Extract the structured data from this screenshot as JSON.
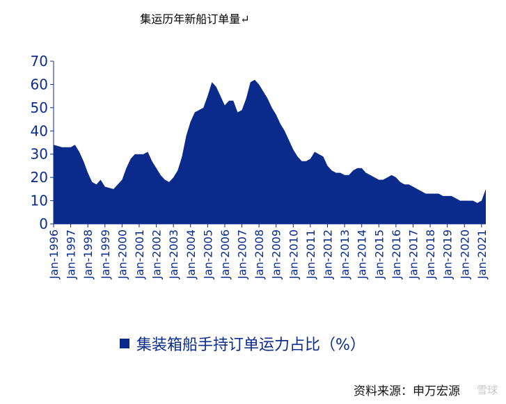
{
  "title": "集运历年新船订单量↵",
  "legend_label": "集装箱船手持订单运力占比（%）",
  "source": "资料来源：申万宏源",
  "watermark": "雪球",
  "colors": {
    "area": "#0a2a8c",
    "axis": "#0b2c8a",
    "text": "#0b2c8a"
  },
  "chart_data": {
    "type": "area",
    "title": "集运历年新船订单量",
    "series": [
      {
        "name": "集装箱船手持订单运力占比（%）"
      }
    ],
    "ylim": [
      0,
      70
    ],
    "yticks": [
      0,
      10,
      20,
      30,
      40,
      50,
      60,
      70
    ],
    "xlim": [
      1996.0,
      2021.25
    ],
    "xtick_labels": [
      "Jan-1996",
      "Jan-1997",
      "Jan-1998",
      "Jan-1999",
      "Jan-2000",
      "Jan-2001",
      "Jan-2002",
      "Jan-2003",
      "Jan-2004",
      "Jan-2005",
      "Jan-2006",
      "Jan-2007",
      "Jan-2008",
      "Jan-2009",
      "Jan-2010",
      "Jan-2011",
      "Jan-2012",
      "Jan-2013",
      "Jan-2014",
      "Jan-2015",
      "Jan-2016",
      "Jan-2017",
      "Jan-2018",
      "Jan-2019",
      "Jan-2020",
      "Jan-2021"
    ],
    "grid": false,
    "legend_position": "bottom",
    "points": [
      [
        "Jan-1996",
        34
      ],
      [
        "Jul-1996",
        33
      ],
      [
        "Jan-1997",
        33
      ],
      [
        "Apr-1997",
        34
      ],
      [
        "Jul-1997",
        31
      ],
      [
        "Oct-1997",
        27
      ],
      [
        "Jan-1998",
        22
      ],
      [
        "Apr-1998",
        18
      ],
      [
        "Jul-1998",
        17
      ],
      [
        "Oct-1998",
        19
      ],
      [
        "Jan-1999",
        16
      ],
      [
        "Jul-1999",
        15
      ],
      [
        "Oct-1999",
        17
      ],
      [
        "Jan-2000",
        19
      ],
      [
        "Apr-2000",
        24
      ],
      [
        "Jul-2000",
        28
      ],
      [
        "Oct-2000",
        30
      ],
      [
        "Jan-2001",
        30
      ],
      [
        "Apr-2001",
        30
      ],
      [
        "Jul-2001",
        31
      ],
      [
        "Oct-2001",
        27
      ],
      [
        "Jan-2002",
        24
      ],
      [
        "Apr-2002",
        21
      ],
      [
        "Jul-2002",
        19
      ],
      [
        "Oct-2002",
        18
      ],
      [
        "Jan-2003",
        20
      ],
      [
        "Apr-2003",
        23
      ],
      [
        "Jul-2003",
        29
      ],
      [
        "Oct-2003",
        38
      ],
      [
        "Jan-2004",
        44
      ],
      [
        "Apr-2004",
        48
      ],
      [
        "Jul-2004",
        49
      ],
      [
        "Oct-2004",
        50
      ],
      [
        "Jan-2005",
        55
      ],
      [
        "Apr-2005",
        61
      ],
      [
        "Jul-2005",
        59
      ],
      [
        "Oct-2005",
        55
      ],
      [
        "Jan-2006",
        51
      ],
      [
        "Apr-2006",
        53
      ],
      [
        "Jul-2006",
        53
      ],
      [
        "Oct-2006",
        48
      ],
      [
        "Jan-2007",
        49
      ],
      [
        "Apr-2007",
        54
      ],
      [
        "Jul-2007",
        61
      ],
      [
        "Oct-2007",
        62
      ],
      [
        "Jan-2008",
        60
      ],
      [
        "Apr-2008",
        57
      ],
      [
        "Jul-2008",
        54
      ],
      [
        "Oct-2008",
        50
      ],
      [
        "Jan-2009",
        47
      ],
      [
        "Apr-2009",
        43
      ],
      [
        "Jul-2009",
        40
      ],
      [
        "Oct-2009",
        36
      ],
      [
        "Jan-2010",
        32
      ],
      [
        "Apr-2010",
        29
      ],
      [
        "Jul-2010",
        27
      ],
      [
        "Oct-2010",
        27
      ],
      [
        "Jan-2011",
        28
      ],
      [
        "Apr-2011",
        31
      ],
      [
        "Jul-2011",
        30
      ],
      [
        "Oct-2011",
        29
      ],
      [
        "Jan-2012",
        25
      ],
      [
        "Apr-2012",
        23
      ],
      [
        "Jul-2012",
        22
      ],
      [
        "Oct-2012",
        22
      ],
      [
        "Jan-2013",
        21
      ],
      [
        "Apr-2013",
        21
      ],
      [
        "Jul-2013",
        23
      ],
      [
        "Oct-2013",
        24
      ],
      [
        "Jan-2014",
        24
      ],
      [
        "Apr-2014",
        22
      ],
      [
        "Jul-2014",
        21
      ],
      [
        "Oct-2014",
        20
      ],
      [
        "Jan-2015",
        19
      ],
      [
        "Apr-2015",
        19
      ],
      [
        "Jul-2015",
        20
      ],
      [
        "Oct-2015",
        21
      ],
      [
        "Jan-2016",
        20
      ],
      [
        "Apr-2016",
        18
      ],
      [
        "Jul-2016",
        17
      ],
      [
        "Oct-2016",
        17
      ],
      [
        "Jan-2017",
        16
      ],
      [
        "Apr-2017",
        15
      ],
      [
        "Jul-2017",
        14
      ],
      [
        "Oct-2017",
        13
      ],
      [
        "Jan-2018",
        13
      ],
      [
        "Apr-2018",
        13
      ],
      [
        "Jul-2018",
        13
      ],
      [
        "Oct-2018",
        12
      ],
      [
        "Jan-2019",
        12
      ],
      [
        "Apr-2019",
        12
      ],
      [
        "Jul-2019",
        11
      ],
      [
        "Oct-2019",
        10
      ],
      [
        "Jan-2020",
        10
      ],
      [
        "Apr-2020",
        10
      ],
      [
        "Jul-2020",
        10
      ],
      [
        "Oct-2020",
        9
      ],
      [
        "Jan-2021",
        10
      ],
      [
        "Apr-2021",
        15
      ]
    ]
  }
}
